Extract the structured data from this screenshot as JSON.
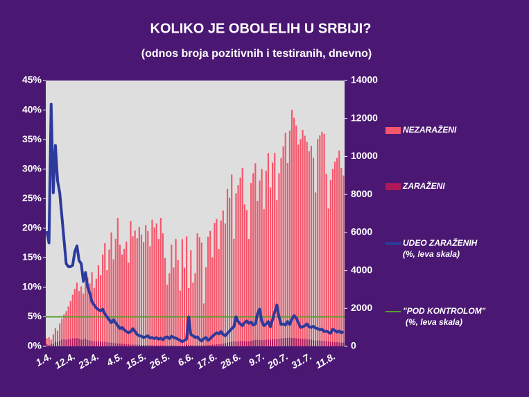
{
  "chart_data": {
    "type": "bar",
    "title": "KOLIKO JE OBOLELIH U SRBIJI?",
    "subtitle": "(odnos broja pozitivnih i testiranih, dnevno)",
    "stacked": true,
    "categories": [
      "1.4.",
      null,
      null,
      null,
      null,
      null,
      null,
      null,
      null,
      null,
      null,
      "12.4.",
      null,
      null,
      null,
      null,
      null,
      null,
      null,
      null,
      null,
      null,
      "23.4.",
      null,
      null,
      null,
      null,
      null,
      null,
      null,
      null,
      null,
      null,
      "4.5.",
      null,
      null,
      null,
      null,
      null,
      null,
      null,
      null,
      null,
      null,
      "15.5.",
      null,
      null,
      null,
      null,
      null,
      null,
      null,
      null,
      null,
      null,
      "26.5.",
      null,
      null,
      null,
      null,
      null,
      null,
      null,
      null,
      null,
      null,
      "6.6.",
      null,
      null,
      null,
      null,
      null,
      null,
      null,
      null,
      null,
      null,
      "17.6.",
      null,
      null,
      null,
      null,
      null,
      null,
      null,
      null,
      null,
      null,
      "28.6.",
      null,
      null,
      null,
      null,
      null,
      null,
      null,
      null,
      null,
      null,
      "9.7.",
      null,
      null,
      null,
      null,
      null,
      null,
      null,
      null,
      null,
      null,
      "20.7.",
      null,
      null,
      null,
      null,
      null,
      null,
      null,
      null,
      null,
      null,
      "31.7.",
      null,
      null,
      null,
      null,
      null,
      null,
      null,
      null,
      null,
      null,
      "11.8.",
      null,
      null,
      null,
      null,
      null,
      null
    ],
    "series": [
      {
        "name": "NEZARAŽENI",
        "type": "bar",
        "axis": "y2",
        "color": "#f4566b",
        "values": [
          300,
          400,
          200,
          500,
          700,
          600,
          900,
          1100,
          1300,
          1500,
          1700,
          2000,
          2300,
          2600,
          2900,
          2500,
          2800,
          2400,
          3000,
          3300,
          3000,
          3600,
          2800,
          3300,
          4000,
          3500,
          4600,
          5200,
          3800,
          4900,
          5800,
          4400,
          5500,
          6600,
          5200,
          4700,
          5000,
          5400,
          4300,
          6500,
          5700,
          6000,
          5600,
          6200,
          5800,
          5400,
          6300,
          6000,
          5200,
          6600,
          6200,
          6400,
          5600,
          6700,
          5900,
          4600,
          3200,
          3800,
          5300,
          4100,
          5600,
          4500,
          2900,
          5600,
          4100,
          5700,
          3000,
          5000,
          3300,
          3800,
          5900,
          5700,
          5400,
          2200,
          4100,
          5700,
          6000,
          4600,
          6400,
          6600,
          5000,
          6500,
          7000,
          6300,
          8100,
          7600,
          8800,
          5400,
          7800,
          8200,
          8600,
          9100,
          7200,
          6900,
          5400,
          8300,
          8800,
          9300,
          7300,
          8400,
          9000,
          6900,
          8900,
          9800,
          8000,
          9300,
          9800,
          7300,
          8700,
          9500,
          10100,
          10800,
          9200,
          10900,
          12000,
          11600,
          11200,
          10200,
          10500,
          11000,
          10700,
          10400,
          9900,
          10200,
          9600,
          7800,
          10600,
          10800,
          11000,
          10900,
          8800,
          7000,
          8500,
          9100,
          9500,
          9700,
          10100,
          9200,
          8800
        ]
      },
      {
        "name": "ZARAŽENI",
        "type": "bar",
        "axis": "y2",
        "color": "#b0185a",
        "values": [
          120,
          80,
          150,
          130,
          250,
          220,
          300,
          360,
          380,
          350,
          400,
          380,
          420,
          430,
          450,
          410,
          360,
          380,
          400,
          330,
          310,
          300,
          280,
          260,
          270,
          250,
          240,
          240,
          220,
          200,
          200,
          180,
          170,
          160,
          150,
          140,
          130,
          120,
          110,
          100,
          100,
          95,
          90,
          90,
          85,
          80,
          80,
          75,
          70,
          70,
          65,
          70,
          60,
          60,
          55,
          50,
          45,
          50,
          55,
          50,
          50,
          45,
          40,
          50,
          45,
          95,
          80,
          70,
          60,
          55,
          55,
          50,
          60,
          55,
          60,
          70,
          80,
          90,
          100,
          110,
          120,
          130,
          150,
          170,
          200,
          230,
          250,
          270,
          260,
          280,
          290,
          300,
          280,
          270,
          260,
          300,
          320,
          340,
          350,
          330,
          340,
          330,
          350,
          370,
          360,
          380,
          390,
          400,
          410,
          420,
          430,
          440,
          450,
          460,
          450,
          440,
          430,
          420,
          410,
          400,
          390,
          380,
          370,
          360,
          340,
          300,
          320,
          310,
          300,
          290,
          280,
          260,
          250,
          240,
          230,
          220,
          210,
          200,
          200
        ]
      },
      {
        "name": "UDEO ZARAŽENIH",
        "note": "(%, leva skala)",
        "type": "line",
        "axis": "y",
        "color": "#2d3a9c",
        "values": [
          19.5,
          17.5,
          41,
          26,
          34,
          28,
          26,
          22,
          18,
          14,
          13.5,
          13.5,
          13.7,
          16,
          17,
          14.5,
          14,
          11,
          12.5,
          10,
          9,
          7.5,
          7,
          6.5,
          6.2,
          6,
          6.3,
          5.5,
          5,
          4.5,
          4,
          4.5,
          4,
          3.5,
          3,
          3.2,
          2.8,
          2.5,
          2.3,
          2.5,
          3,
          2.5,
          2,
          1.8,
          1.7,
          1.5,
          1.6,
          1.8,
          1.4,
          1.5,
          1.3,
          1.5,
          1.2,
          1.4,
          1.1,
          1.5,
          1.6,
          1.3,
          1.7,
          1.5,
          1.4,
          1.2,
          1,
          0.8,
          1,
          1.2,
          5,
          2,
          1.8,
          1.5,
          1.6,
          1.2,
          0.9,
          1.3,
          1.5,
          1,
          1.3,
          1.7,
          2,
          2.3,
          2.1,
          2.5,
          2,
          1.8,
          2.2,
          2.6,
          3,
          3.3,
          5,
          4.2,
          3.8,
          3.5,
          4,
          4.3,
          3.9,
          4.1,
          3.6,
          3.8,
          5.5,
          6.3,
          4.2,
          3.5,
          3.8,
          4.2,
          3.3,
          4.5,
          5.8,
          7,
          5,
          3.7,
          3.8,
          3.6,
          4.2,
          3.7,
          4.6,
          5.2,
          4.8,
          4,
          3.2,
          3.3,
          3.5,
          3.8,
          3.3,
          3.2,
          3.4,
          3.1,
          3,
          2.8,
          2.9,
          2.5,
          2.6,
          2.4,
          2.2,
          2.9,
          2.7,
          2.4,
          2.6,
          2.3,
          2.5
        ]
      }
    ],
    "reference_line": {
      "name": "\"POD KONTROLOM\"",
      "note": "(%, leva skala)",
      "value": 5,
      "color": "#5a9e2c",
      "axis": "y"
    },
    "ylim": [
      0,
      45
    ],
    "yticks": [
      {
        "value": 0,
        "label": "0%"
      },
      {
        "value": 5,
        "label": "5%"
      },
      {
        "value": 10,
        "label": "10%"
      },
      {
        "value": 15,
        "label": "15%"
      },
      {
        "value": 20,
        "label": "20%"
      },
      {
        "value": 25,
        "label": "25%"
      },
      {
        "value": 30,
        "label": "30%"
      },
      {
        "value": 35,
        "label": "35%"
      },
      {
        "value": 40,
        "label": "40%"
      },
      {
        "value": 45,
        "label": "45%"
      }
    ],
    "y2lim": [
      0,
      14000
    ],
    "y2ticks": [
      0,
      2000,
      4000,
      6000,
      8000,
      10000,
      12000,
      14000
    ]
  }
}
